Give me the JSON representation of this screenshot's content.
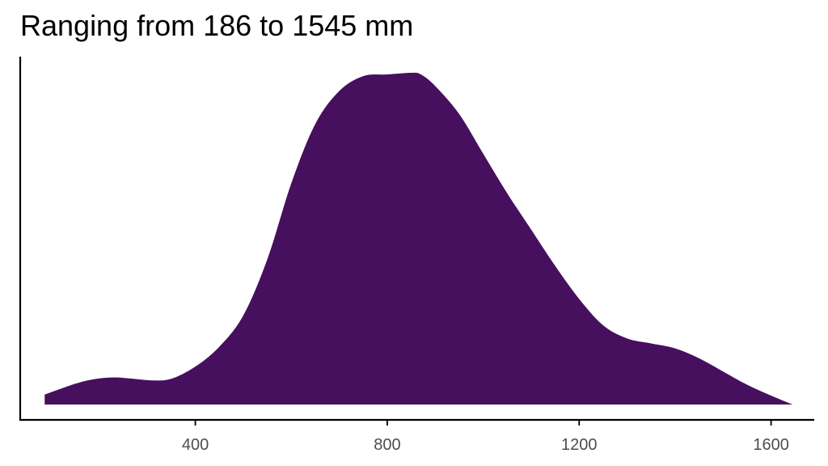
{
  "chart_data": {
    "type": "area",
    "title": "Ranging from 186 to 1545 mm",
    "xlabel": "",
    "ylabel": "",
    "xlim": [
      35,
      1690
    ],
    "ylim": [
      0,
      1.06
    ],
    "x_ticks": [
      400,
      800,
      1200,
      1600
    ],
    "fill_color": "#46105e",
    "y_axis_ticks_shown": false,
    "grid": false,
    "series": [
      {
        "x": [
          86,
          150,
          190,
          230,
          270,
          310,
          350,
          400,
          450,
          500,
          550,
          600,
          650,
          700,
          750,
          800,
          850,
          870,
          900,
          950,
          1000,
          1050,
          1100,
          1150,
          1200,
          1250,
          1300,
          1350,
          1400,
          1450,
          1500,
          1550,
          1600,
          1645
        ],
        "y": [
          0.03,
          0.063,
          0.077,
          0.082,
          0.078,
          0.073,
          0.078,
          0.115,
          0.175,
          0.27,
          0.44,
          0.67,
          0.85,
          0.95,
          0.995,
          1.0,
          1.005,
          1.0,
          0.965,
          0.88,
          0.76,
          0.64,
          0.53,
          0.42,
          0.32,
          0.24,
          0.2,
          0.185,
          0.17,
          0.14,
          0.1,
          0.06,
          0.027,
          0.0
        ]
      }
    ]
  }
}
